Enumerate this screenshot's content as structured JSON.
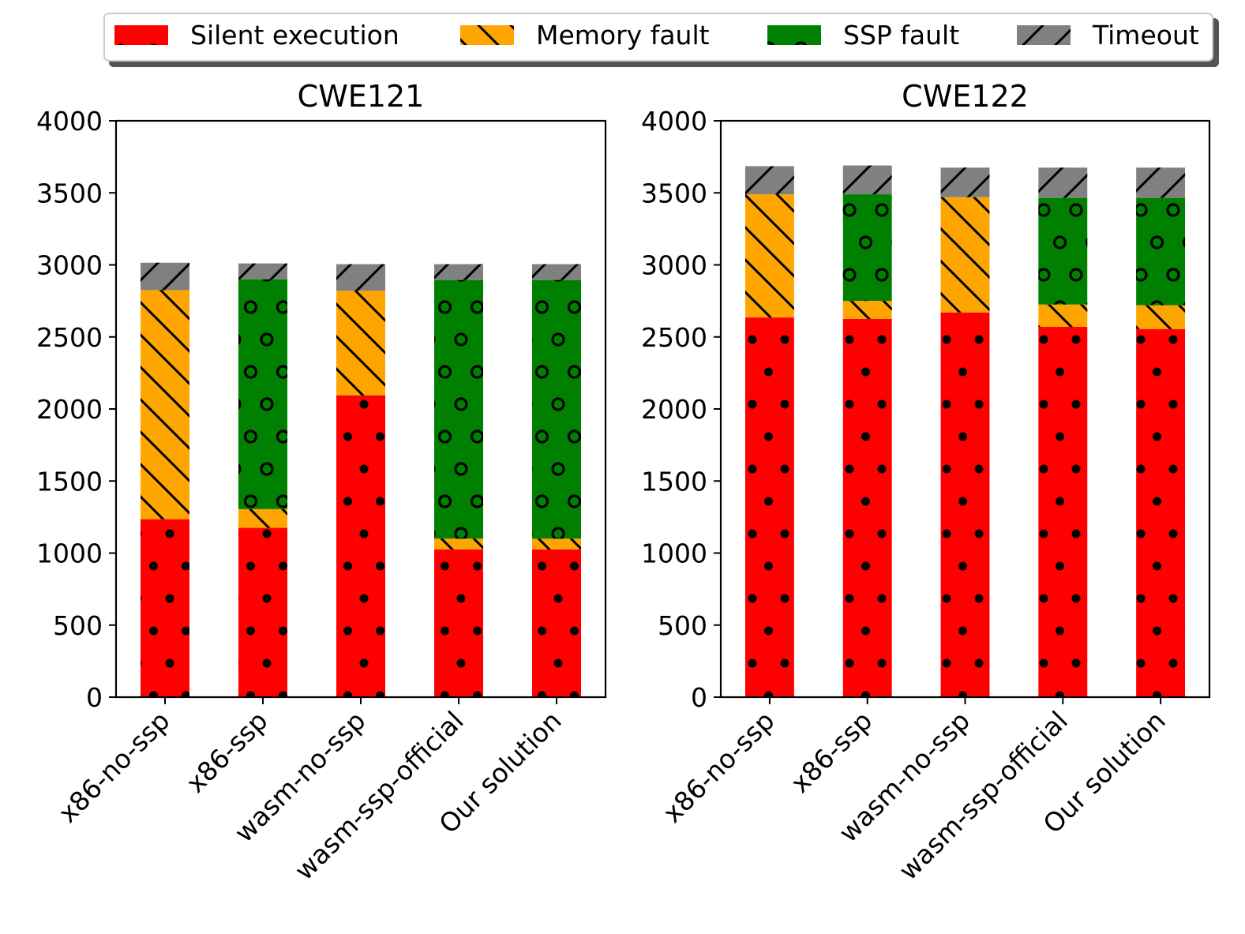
{
  "chart_data": [
    {
      "type": "bar",
      "stacked": true,
      "title": "CWE121",
      "categories": [
        "x86-no-ssp",
        "x86-ssp",
        "wasm-no-ssp",
        "wasm-ssp-official",
        "Our solution"
      ],
      "ylim": [
        0,
        4000
      ],
      "yticks": [
        "0",
        "500",
        "1000",
        "1500",
        "2000",
        "2500",
        "3000",
        "3500",
        "4000"
      ],
      "xlabel": "",
      "ylabel": "",
      "series": [
        {
          "name": "Silent execution",
          "values": [
            1235,
            1175,
            2095,
            1025,
            1025
          ]
        },
        {
          "name": "Memory fault",
          "values": [
            1590,
            130,
            725,
            75,
            75
          ]
        },
        {
          "name": "SSP fault",
          "values": [
            0,
            1595,
            0,
            1795,
            1795
          ]
        },
        {
          "name": "Timeout",
          "values": [
            190,
            110,
            185,
            110,
            110
          ]
        }
      ]
    },
    {
      "type": "bar",
      "stacked": true,
      "title": "CWE122",
      "categories": [
        "x86-no-ssp",
        "x86-ssp",
        "wasm-no-ssp",
        "wasm-ssp-official",
        "Our solution"
      ],
      "ylim": [
        0,
        4000
      ],
      "yticks": [
        "0",
        "500",
        "1000",
        "1500",
        "2000",
        "2500",
        "3000",
        "3500",
        "4000"
      ],
      "xlabel": "",
      "ylabel": "",
      "series": [
        {
          "name": "Silent execution",
          "values": [
            2635,
            2625,
            2670,
            2570,
            2555
          ]
        },
        {
          "name": "Memory fault",
          "values": [
            855,
            125,
            800,
            155,
            165
          ]
        },
        {
          "name": "SSP fault",
          "values": [
            0,
            740,
            0,
            740,
            745
          ]
        },
        {
          "name": "Timeout",
          "values": [
            195,
            200,
            205,
            210,
            210
          ]
        }
      ]
    }
  ],
  "legend": {
    "position": "top",
    "items": [
      {
        "label": "Silent execution",
        "color": "#ff0000",
        "hatch": "dots"
      },
      {
        "label": "Memory fault",
        "color": "#ffa500",
        "hatch": "backslash"
      },
      {
        "label": "SSP fault",
        "color": "#008000",
        "hatch": "rings"
      },
      {
        "label": "Timeout",
        "color": "#808080",
        "hatch": "slash"
      }
    ]
  }
}
